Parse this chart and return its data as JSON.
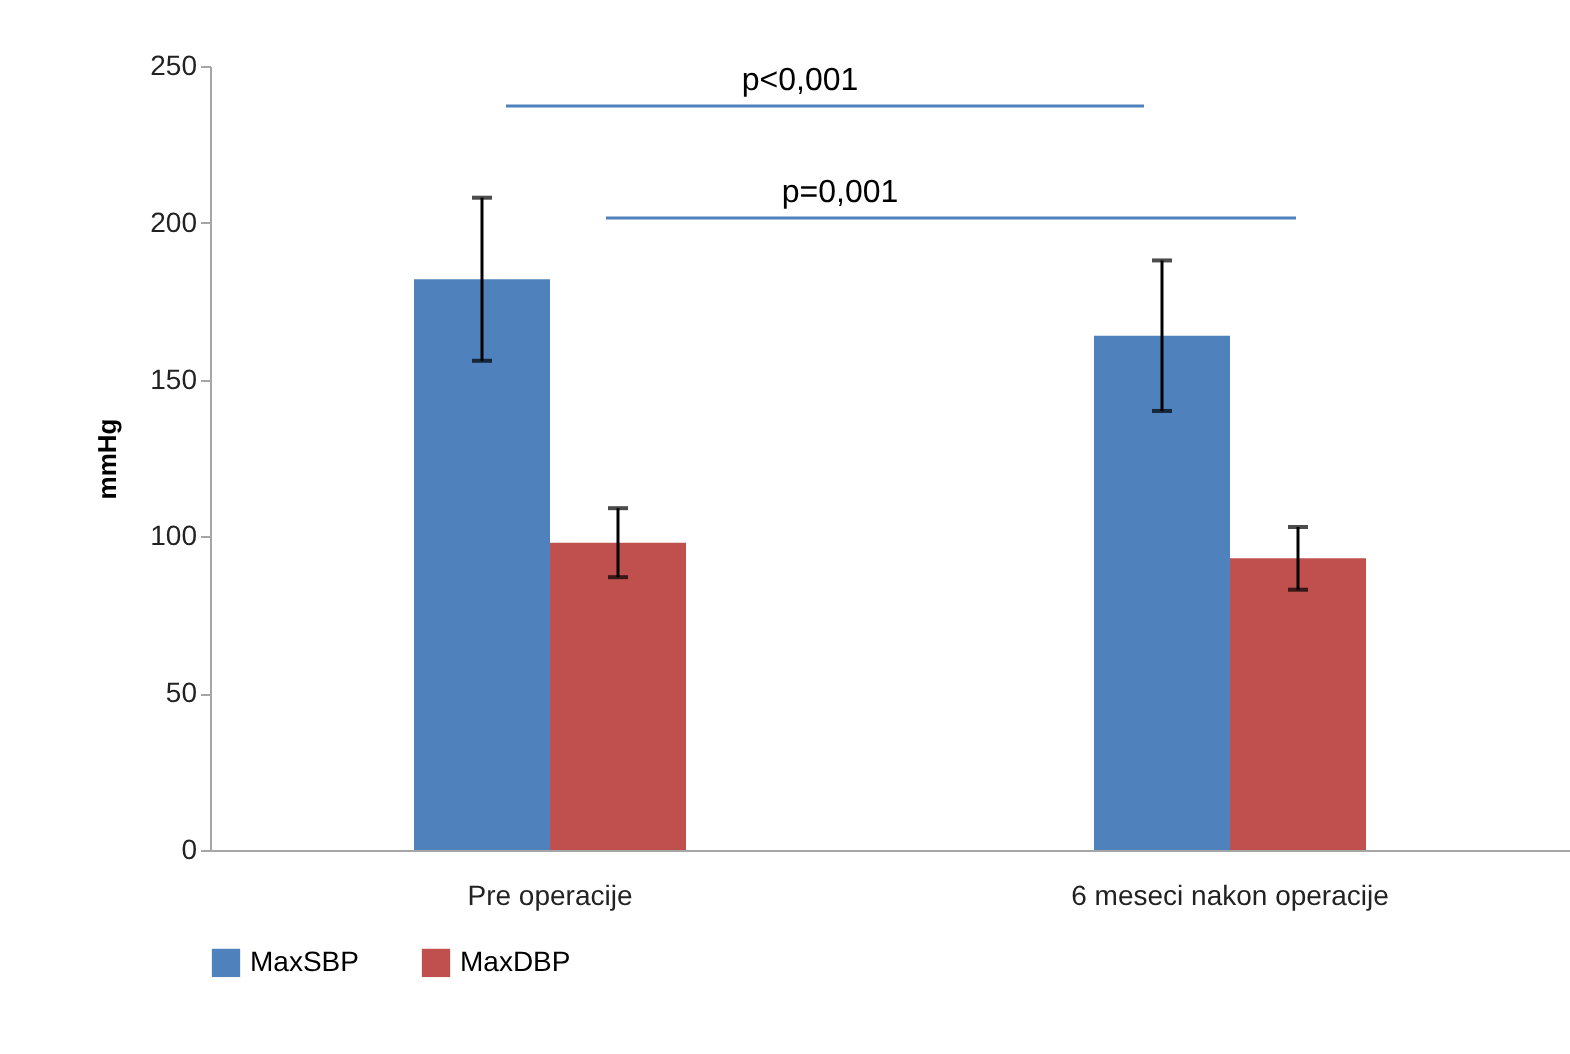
{
  "chart_data": {
    "type": "bar",
    "ylabel": "mmHg",
    "categories": [
      "Pre operacije",
      "6 meseci nakon operacije"
    ],
    "series": [
      {
        "name": "MaxSBP",
        "color": "#4f81bd",
        "values": [
          182,
          164
        ],
        "errors": [
          26,
          24
        ]
      },
      {
        "name": "MaxDBP",
        "color": "#c0504d",
        "values": [
          98,
          93
        ],
        "errors": [
          11,
          10
        ]
      }
    ],
    "ylim": [
      0,
      250
    ],
    "yticks": [
      0,
      50,
      100,
      150,
      200,
      250
    ],
    "grid": false,
    "legend": "bottom",
    "annotations": [
      "p<0,001",
      "p=0,001"
    ]
  }
}
